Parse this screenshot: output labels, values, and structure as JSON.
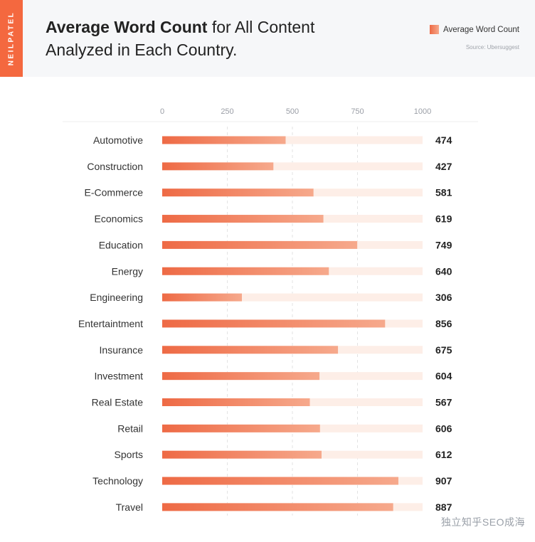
{
  "brand": "NEILPATEL",
  "title": {
    "bold_part": "Average Word Count",
    "rest_part": " for All Content Analyzed in Each Country."
  },
  "legend": {
    "label": "Average Word Count"
  },
  "source": "Source: Ubersuggest",
  "watermark": "独立知乎SEO成海",
  "colors": {
    "bar_start": "#ee6a45",
    "bar_end": "#f6a98c",
    "track": "#fdeee7",
    "brand": "#f4683f"
  },
  "chart_data": {
    "type": "bar",
    "orientation": "horizontal",
    "title": "Average Word Count for All Content Analyzed in Each Country.",
    "xlim": [
      0,
      1000
    ],
    "x_ticks": [
      0,
      250,
      500,
      750,
      1000
    ],
    "grid": true,
    "legend_position": "top-right",
    "series": [
      {
        "name": "Average Word Count",
        "categories": [
          "Automotive",
          "Construction",
          "E-Commerce",
          "Economics",
          "Education",
          "Energy",
          "Engineering",
          "Entertaintment",
          "Insurance",
          "Investment",
          "Real Estate",
          "Retail",
          "Sports",
          "Technology",
          "Travel"
        ],
        "values": [
          474,
          427,
          581,
          619,
          749,
          640,
          306,
          856,
          675,
          604,
          567,
          606,
          612,
          907,
          887
        ]
      }
    ]
  }
}
